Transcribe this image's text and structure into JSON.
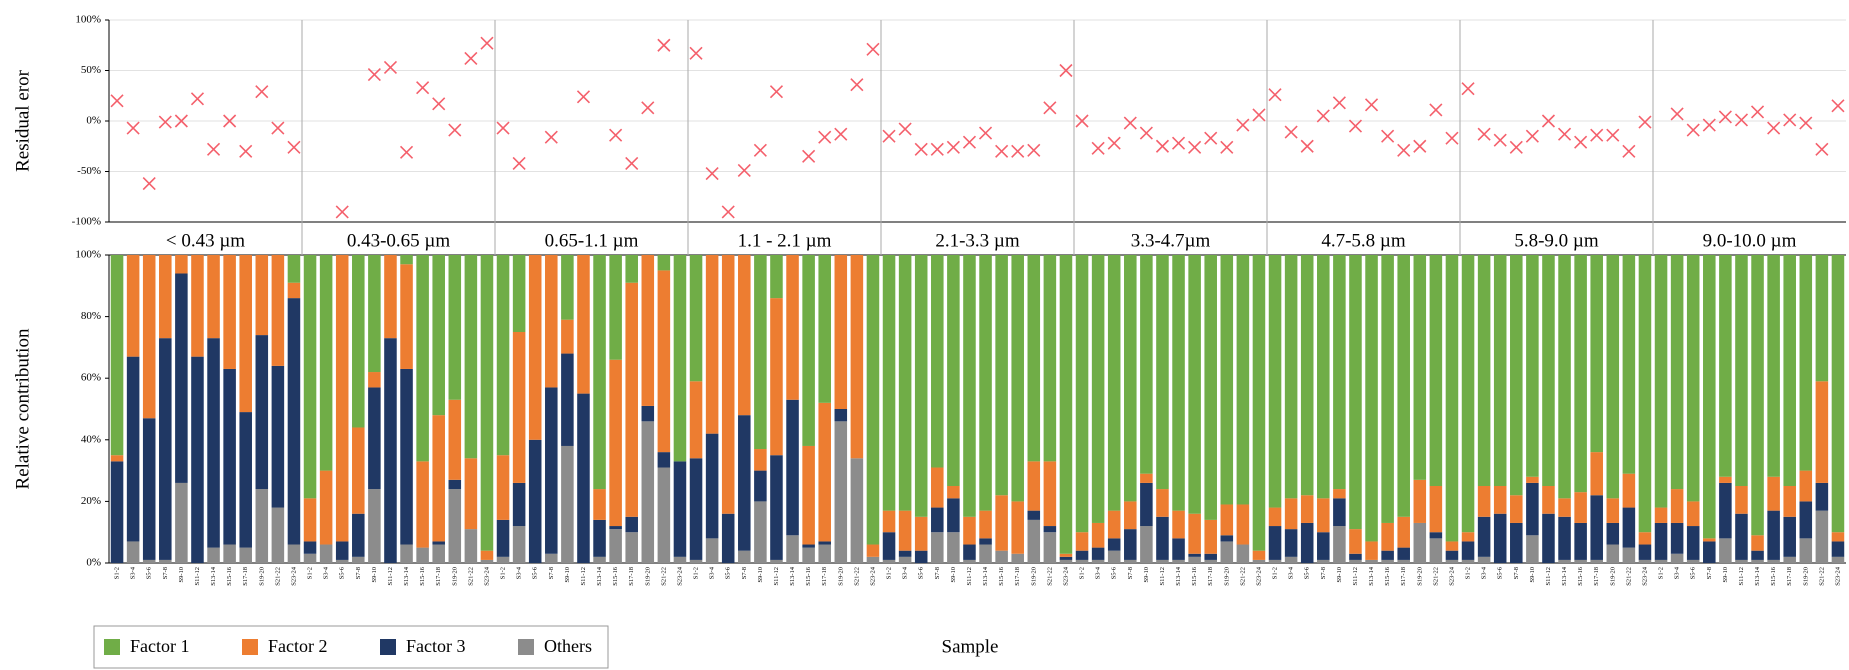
{
  "chart_data": [
    {
      "type": "scatter",
      "y_label": "Residual eror",
      "color": "#f4606c",
      "grid": true,
      "ylim": [
        -100,
        100
      ],
      "yticks": [
        {
          "value": -100,
          "label": "-100%"
        },
        {
          "value": -50,
          "label": "-50%"
        },
        {
          "value": 0,
          "label": "0%"
        },
        {
          "value": 50,
          "label": "50%"
        },
        {
          "value": 100,
          "label": "100%"
        }
      ],
      "values": [
        [
          20,
          -7,
          -62,
          -1,
          0,
          22,
          -28,
          0,
          -30,
          29,
          -7,
          -26
        ],
        [
          null,
          null,
          -90,
          null,
          46,
          53,
          -31,
          33,
          17,
          -9,
          62,
          77
        ],
        [
          -7,
          -42,
          null,
          -16,
          null,
          24,
          null,
          -14,
          -42,
          13,
          75,
          null
        ],
        [
          67,
          -52,
          -90,
          -49,
          -29,
          29,
          null,
          -35,
          -16,
          -13,
          36,
          71
        ],
        [
          -15,
          -8,
          -28,
          -28,
          -26,
          -21,
          -12,
          -30,
          -30,
          -29,
          13,
          50
        ],
        [
          0,
          -27,
          -22,
          -2,
          -12,
          -25,
          -22,
          -26,
          -17,
          -26,
          -4,
          6
        ],
        [
          26,
          -11,
          -25,
          5,
          18,
          -5,
          16,
          -15,
          -29,
          -25,
          11,
          -17
        ],
        [
          32,
          -13,
          -19,
          -26,
          -15,
          0,
          -13,
          -21,
          -14,
          -14,
          -30,
          -1
        ],
        [
          null,
          7,
          -9,
          -4,
          4,
          1,
          9,
          -7,
          1,
          -2,
          -28,
          15
        ]
      ]
    },
    {
      "type": "bar",
      "stacked": true,
      "y_label": "Relative contribution",
      "x_label": "Sample",
      "grid": false,
      "legend": "bottom-left",
      "ylim": [
        0,
        100
      ],
      "yticks": [
        {
          "value": 0,
          "label": "0%"
        },
        {
          "value": 20,
          "label": "20%"
        },
        {
          "value": 40,
          "label": "40%"
        },
        {
          "value": 60,
          "label": "60%"
        },
        {
          "value": 80,
          "label": "80%"
        },
        {
          "value": 100,
          "label": "100%"
        }
      ],
      "groups": [
        "< 0.43 µm",
        "0.43-0.65 µm",
        "0.65-1.1 µm",
        "1.1 - 2.1 µm",
        "2.1-3.3 µm",
        "3.3-4.7µm",
        "4.7-5.8 µm",
        "5.8-9.0 µm",
        "9.0-10.0 µm"
      ],
      "categories": [
        "S1-2",
        "S3-4",
        "S5-6",
        "S7-8",
        "S9-10",
        "S11-12",
        "S13-14",
        "S15-16",
        "S17-18",
        "S19-20",
        "S21-22",
        "S23-24"
      ],
      "series": [
        {
          "name": "Factor 1",
          "color": "#70ad47",
          "values": [
            [
              65,
              0,
              0,
              0,
              0,
              0,
              0,
              0,
              0,
              0,
              0,
              9
            ],
            [
              79,
              70,
              0,
              56,
              38,
              0,
              3,
              67,
              52,
              47,
              66,
              96
            ],
            [
              65,
              25,
              0,
              0,
              21,
              0,
              76,
              34,
              9,
              0,
              5,
              67
            ],
            [
              41,
              0,
              0,
              0,
              63,
              14,
              0,
              62,
              48,
              0,
              0,
              94
            ],
            [
              83,
              83,
              85,
              69,
              75,
              85,
              83,
              78,
              80,
              67,
              67,
              97
            ],
            [
              90,
              87,
              83,
              80,
              71,
              76,
              83,
              84,
              86,
              81,
              81,
              96
            ],
            [
              82,
              79,
              78,
              79,
              76,
              89,
              93,
              87,
              85,
              73,
              75,
              93
            ],
            [
              90,
              75,
              75,
              78,
              72,
              75,
              79,
              77,
              64,
              79,
              71,
              90
            ],
            [
              82,
              76,
              80,
              92,
              72,
              75,
              91,
              72,
              75,
              70,
              41,
              90
            ]
          ]
        },
        {
          "name": "Factor 2",
          "color": "#ed7d31",
          "values": [
            [
              2,
              33,
              53,
              27,
              6,
              33,
              27,
              37,
              51,
              26,
              36,
              5
            ],
            [
              14,
              24,
              93,
              28,
              5,
              27,
              34,
              28,
              41,
              26,
              23,
              3
            ],
            [
              21,
              49,
              60,
              43,
              11,
              45,
              10,
              54,
              76,
              49,
              59,
              0
            ],
            [
              25,
              58,
              84,
              52,
              7,
              51,
              47,
              32,
              45,
              50,
              66,
              4
            ],
            [
              7,
              13,
              11,
              13,
              4,
              9,
              9,
              18,
              17,
              16,
              21,
              1
            ],
            [
              6,
              8,
              9,
              9,
              3,
              9,
              9,
              13,
              11,
              10,
              13,
              3
            ],
            [
              6,
              10,
              9,
              11,
              3,
              8,
              6,
              9,
              10,
              14,
              15,
              3
            ],
            [
              3,
              10,
              9,
              9,
              2,
              9,
              6,
              10,
              14,
              8,
              11,
              4
            ],
            [
              5,
              11,
              8,
              1,
              2,
              9,
              5,
              11,
              10,
              10,
              33,
              3
            ]
          ]
        },
        {
          "name": "Factor 3",
          "color": "#203864",
          "values": [
            [
              33,
              60,
              46,
              72,
              68,
              67,
              68,
              57,
              44,
              50,
              46,
              80
            ],
            [
              4,
              0,
              6,
              14,
              33,
              73,
              57,
              0,
              1,
              3,
              0,
              0
            ],
            [
              12,
              14,
              40,
              54,
              30,
              55,
              12,
              1,
              5,
              5,
              5,
              31
            ],
            [
              33,
              34,
              16,
              44,
              10,
              34,
              44,
              1,
              1,
              4,
              0,
              0
            ],
            [
              9,
              2,
              4,
              8,
              11,
              5,
              2,
              0,
              0,
              3,
              2,
              1
            ],
            [
              3,
              4,
              4,
              10,
              14,
              14,
              7,
              1,
              2,
              2,
              0,
              0
            ],
            [
              11,
              9,
              13,
              9,
              9,
              2,
              0,
              3,
              4,
              0,
              2,
              3
            ],
            [
              6,
              13,
              16,
              13,
              17,
              16,
              14,
              12,
              21,
              7,
              13,
              5
            ],
            [
              12,
              10,
              11,
              7,
              18,
              15,
              3,
              16,
              13,
              12,
              9,
              5
            ]
          ]
        },
        {
          "name": "Others",
          "color": "#8c8c8c",
          "values": [
            [
              0,
              7,
              1,
              1,
              26,
              0,
              5,
              6,
              5,
              24,
              18,
              6
            ],
            [
              3,
              6,
              1,
              2,
              24,
              0,
              6,
              5,
              6,
              24,
              11,
              1
            ],
            [
              2,
              12,
              0,
              3,
              38,
              0,
              2,
              11,
              10,
              46,
              31,
              2
            ],
            [
              1,
              8,
              0,
              4,
              20,
              1,
              9,
              5,
              6,
              46,
              34,
              2
            ],
            [
              1,
              2,
              0,
              10,
              10,
              1,
              6,
              4,
              3,
              14,
              10,
              1
            ],
            [
              1,
              1,
              4,
              1,
              12,
              1,
              1,
              2,
              1,
              7,
              6,
              1
            ],
            [
              1,
              2,
              0,
              1,
              12,
              1,
              1,
              1,
              1,
              13,
              8,
              1
            ],
            [
              1,
              2,
              0,
              0,
              9,
              0,
              1,
              1,
              1,
              6,
              5,
              1
            ],
            [
              1,
              3,
              1,
              0,
              8,
              1,
              1,
              1,
              2,
              8,
              17,
              2
            ]
          ]
        }
      ]
    }
  ]
}
